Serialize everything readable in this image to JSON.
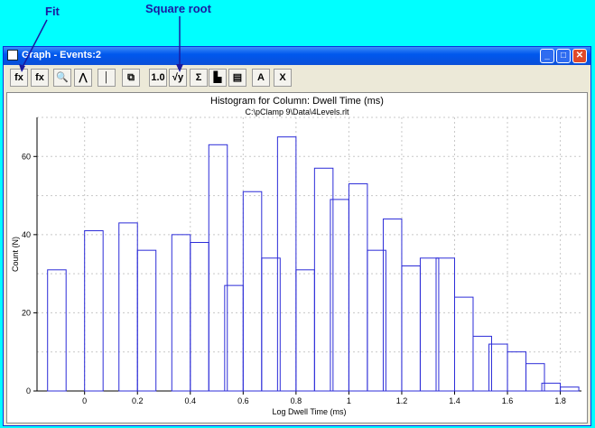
{
  "callouts": {
    "fit": "Fit",
    "square_root": "Square root"
  },
  "window": {
    "title": "Graph - Events:2"
  },
  "toolbar": {
    "buttons": [
      {
        "name": "fit-button",
        "glyph": "fx"
      },
      {
        "name": "fx-table-button",
        "glyph": "fx"
      },
      {
        "name": "zoom-button",
        "glyph": "🔍"
      },
      {
        "name": "curve-button",
        "glyph": "⋀"
      },
      {
        "name": "cursor-button",
        "glyph": "│"
      },
      {
        "name": "copy-button",
        "glyph": "⧉"
      },
      {
        "name": "scale-button",
        "glyph": "1.0"
      },
      {
        "name": "square-root-button",
        "glyph": "√y"
      },
      {
        "name": "sum-button",
        "glyph": "Σ"
      },
      {
        "name": "histogram-button",
        "glyph": "▙"
      },
      {
        "name": "bin-button",
        "glyph": "▤"
      },
      {
        "name": "label-a-button",
        "glyph": "A"
      },
      {
        "name": "label-x-button",
        "glyph": "X"
      }
    ]
  },
  "chart_data": {
    "type": "bar",
    "title": "Histogram for Column: Dwell Time (ms)",
    "subtitle": "C:\\pClamp 9\\Data\\4Levels.rlt",
    "xlabel": "Log Dwell Time (ms)",
    "ylabel": "Count (N)",
    "xlim": [
      -0.18,
      1.88
    ],
    "ylim": [
      0,
      70
    ],
    "xticks": [
      "0",
      "0.2",
      "0.4",
      "0.6",
      "0.8",
      "1",
      "1.2",
      "1.4",
      "1.6",
      "1.8"
    ],
    "xtick_values": [
      0,
      0.2,
      0.4,
      0.6,
      0.8,
      1,
      1.2,
      1.4,
      1.6,
      1.8
    ],
    "yticks": [
      "0",
      "20",
      "40",
      "60"
    ],
    "ytick_values": [
      0,
      20,
      40,
      60
    ],
    "bin_width": 0.07,
    "bins": [
      {
        "x": -0.14,
        "v": 31
      },
      {
        "x": -0.07,
        "v": 0
      },
      {
        "x": 0.0,
        "v": 41
      },
      {
        "x": 0.07,
        "v": 0
      },
      {
        "x": 0.13,
        "v": 43
      },
      {
        "x": 0.2,
        "v": 36
      },
      {
        "x": 0.27,
        "v": 0
      },
      {
        "x": 0.33,
        "v": 40
      },
      {
        "x": 0.4,
        "v": 38
      },
      {
        "x": 0.47,
        "v": 63
      },
      {
        "x": 0.53,
        "v": 27
      },
      {
        "x": 0.6,
        "v": 51
      },
      {
        "x": 0.67,
        "v": 34
      },
      {
        "x": 0.73,
        "v": 65
      },
      {
        "x": 0.8,
        "v": 31
      },
      {
        "x": 0.87,
        "v": 57
      },
      {
        "x": 0.93,
        "v": 49
      },
      {
        "x": 1.0,
        "v": 53
      },
      {
        "x": 1.07,
        "v": 36
      },
      {
        "x": 1.13,
        "v": 44
      },
      {
        "x": 1.2,
        "v": 32
      },
      {
        "x": 1.27,
        "v": 34
      },
      {
        "x": 1.33,
        "v": 34
      },
      {
        "x": 1.4,
        "v": 24
      },
      {
        "x": 1.47,
        "v": 14
      },
      {
        "x": 1.53,
        "v": 12
      },
      {
        "x": 1.6,
        "v": 10
      },
      {
        "x": 1.67,
        "v": 7
      },
      {
        "x": 1.73,
        "v": 2
      },
      {
        "x": 1.8,
        "v": 1
      }
    ],
    "colors": {
      "line": "#2c2cd8",
      "grid": "#c8c8c8"
    },
    "grid": true
  }
}
